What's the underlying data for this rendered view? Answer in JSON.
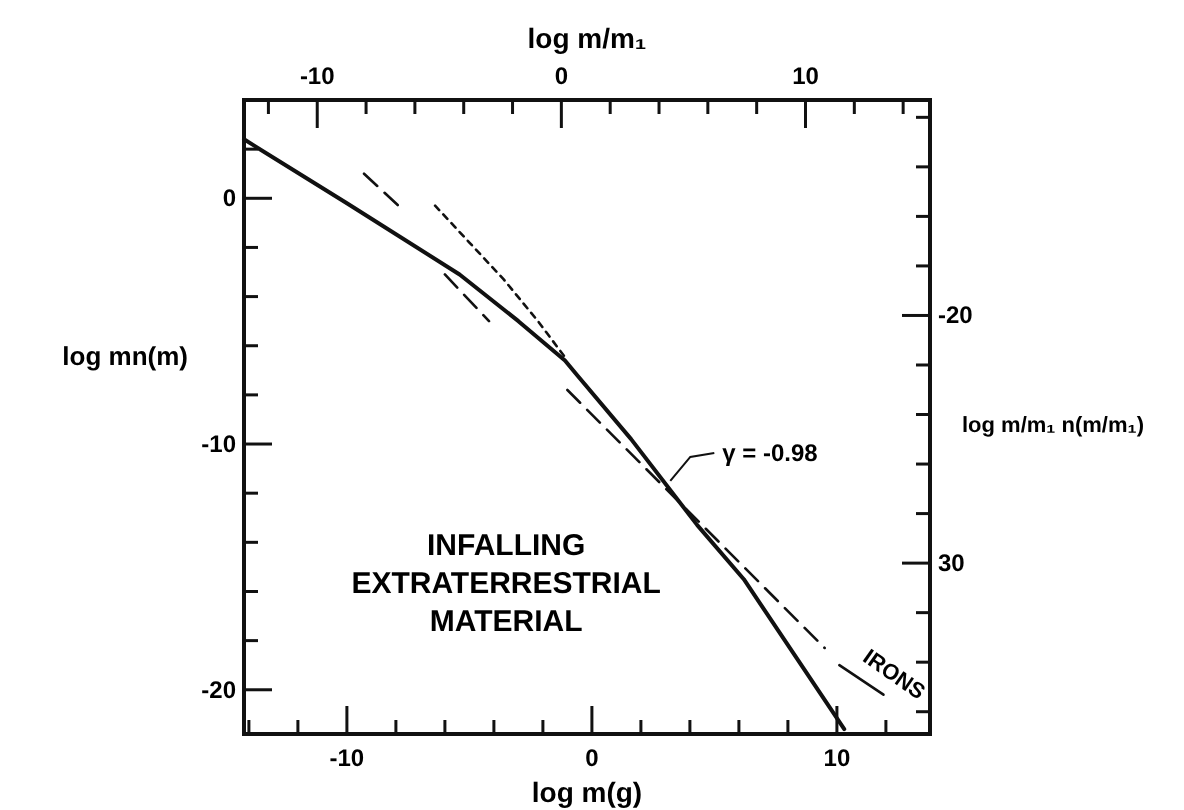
{
  "chart_data": {
    "type": "line",
    "xlabel": "log m(g)",
    "ylabel": "log mn(m)",
    "x2label": "log m/m₁",
    "y2label": "log m/m₁ n(m/m₁)",
    "xlim": [
      -14.2,
      13.8
    ],
    "xticks": [
      {
        "value": -14,
        "label": null
      },
      {
        "value": -12,
        "label": null
      },
      -10,
      {
        "value": -8,
        "label": null
      },
      {
        "value": -6,
        "label": null
      },
      {
        "value": -4,
        "label": null
      },
      {
        "value": -2,
        "label": null
      },
      0,
      {
        "value": 2,
        "label": null
      },
      {
        "value": 4,
        "label": null
      },
      {
        "value": 6,
        "label": null
      },
      {
        "value": 8,
        "label": null
      },
      10,
      {
        "value": 12,
        "label": null
      }
    ],
    "x2lim": [
      -13,
      15.1
    ],
    "x2ticks": [
      {
        "value": -12,
        "label": null
      },
      -10,
      {
        "value": -8,
        "label": null
      },
      {
        "value": -6,
        "label": null
      },
      {
        "value": -4,
        "label": null
      },
      {
        "value": -2,
        "label": null
      },
      0,
      {
        "value": 2,
        "label": null
      },
      {
        "value": 4,
        "label": null
      },
      {
        "value": 6,
        "label": null
      },
      {
        "value": 8,
        "label": null
      },
      10,
      {
        "value": 12,
        "label": null
      },
      {
        "value": 14,
        "label": null
      }
    ],
    "ylim": [
      -21.8,
      4
    ],
    "yticks": [
      {
        "value": 2,
        "label": null
      },
      0,
      {
        "value": -2,
        "label": null
      },
      {
        "value": -4,
        "label": null
      },
      {
        "value": -6,
        "label": null
      },
      {
        "value": -8,
        "label": null
      },
      -10,
      {
        "value": -12,
        "label": null
      },
      {
        "value": -14,
        "label": null
      },
      {
        "value": -16,
        "label": null
      },
      {
        "value": -18,
        "label": null
      },
      -20
    ],
    "y2lim": [
      -36.9,
      -11.3
    ],
    "y2ticks": [
      {
        "value": -12,
        "label": null
      },
      {
        "value": -14,
        "label": null
      },
      {
        "value": -16,
        "label": null
      },
      {
        "value": -18,
        "label": null
      },
      -20,
      {
        "value": -22,
        "label": null
      },
      {
        "value": -24,
        "label": null
      },
      {
        "value": -26,
        "label": null
      },
      {
        "value": -28,
        "label": null
      },
      {
        "value": -30,
        "label": "30"
      },
      {
        "value": -32,
        "label": null
      },
      {
        "value": -34,
        "label": null
      },
      {
        "value": -36,
        "label": null
      }
    ],
    "grid": false,
    "marker": "none",
    "series": [
      {
        "color": "#111111",
        "line_style": "solid",
        "x": [
          -14.2,
          -10,
          -5.4,
          -3,
          -1.1,
          -0.6,
          1.6,
          4.3,
          6.2,
          10.3
        ],
        "values": [
          2.4,
          -0.2,
          -3.1,
          -5,
          -6.6,
          -7.2,
          -9.8,
          -13.3,
          -15.5,
          -21.6
        ]
      },
      {
        "color": "#111111",
        "line_style": "dotted",
        "x": [
          -6.4,
          -5,
          -3.6,
          -2.2,
          -1
        ],
        "values": [
          -0.3,
          -1.8,
          -3.3,
          -5,
          -6.6
        ]
      },
      {
        "color": "#111111",
        "line_style": "dashed",
        "x": [
          -9.3,
          -7.9,
          null,
          -6,
          -4.2
        ],
        "values": [
          1,
          -0.3,
          null,
          -3.1,
          -5
        ]
      },
      {
        "color": "#111111",
        "line_style": "dashed",
        "x": [
          -1,
          3.5,
          9.5
        ],
        "values": [
          -7.8,
          -12.3,
          -18.3
        ]
      },
      {
        "color": "#111111",
        "line_style": "solid",
        "x": [
          10.1,
          11.9
        ],
        "values": [
          -19,
          -20.2
        ]
      }
    ],
    "annotations": [
      {
        "text": "γ = -0.98",
        "x": 3.2,
        "y": -11.5
      },
      "IRONS",
      "INFALLING\nEXTRATERRESTRIAL\nMATERIAL"
    ]
  }
}
